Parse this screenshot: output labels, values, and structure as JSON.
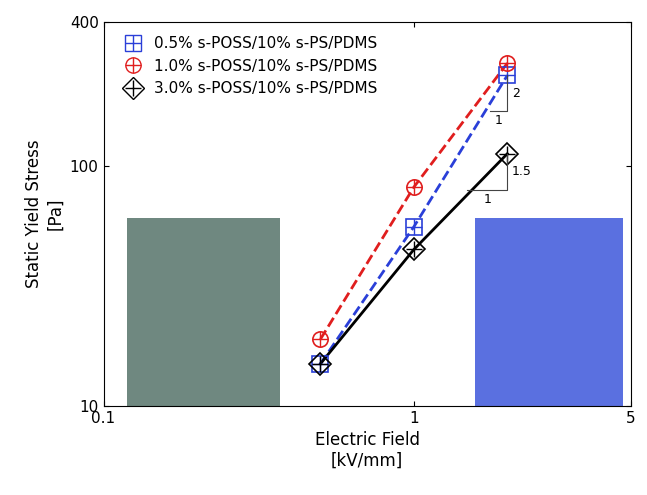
{
  "chart_data": {
    "type": "line",
    "x_label": "Electric Field\n[kV/mm]",
    "y_label": "Static Yield Stress\n[Pa]",
    "log": true,
    "legend": "upper left",
    "xlim": [
      0.1,
      5
    ],
    "xticks": [
      0.1,
      1,
      5
    ],
    "ylim": [
      10,
      400
    ],
    "yticks": [
      10,
      100,
      400
    ],
    "x": [
      0.5,
      1,
      2
    ],
    "series": [
      {
        "name": "0.5% s-POSS/10% s-PS/PDMS",
        "color": "#2a3fd8",
        "marker": "square",
        "line_style": "dashed",
        "values": [
          15,
          56,
          240
        ]
      },
      {
        "name": "1.0% s-POSS/10% s-PS/PDMS",
        "color": "#e01e1e",
        "marker": "circle",
        "line_style": "dashed",
        "values": [
          19,
          82,
          270
        ]
      },
      {
        "name": "3.0% s-POSS/10% s-PS/PDMS",
        "color": "#000000",
        "marker": "diamond",
        "line_style": "solid",
        "values": [
          15,
          45,
          113
        ]
      }
    ],
    "annotations": [
      {
        "text": "2"
      },
      {
        "text": "1"
      },
      {
        "text": "1.5"
      },
      {
        "text": "1"
      }
    ]
  }
}
